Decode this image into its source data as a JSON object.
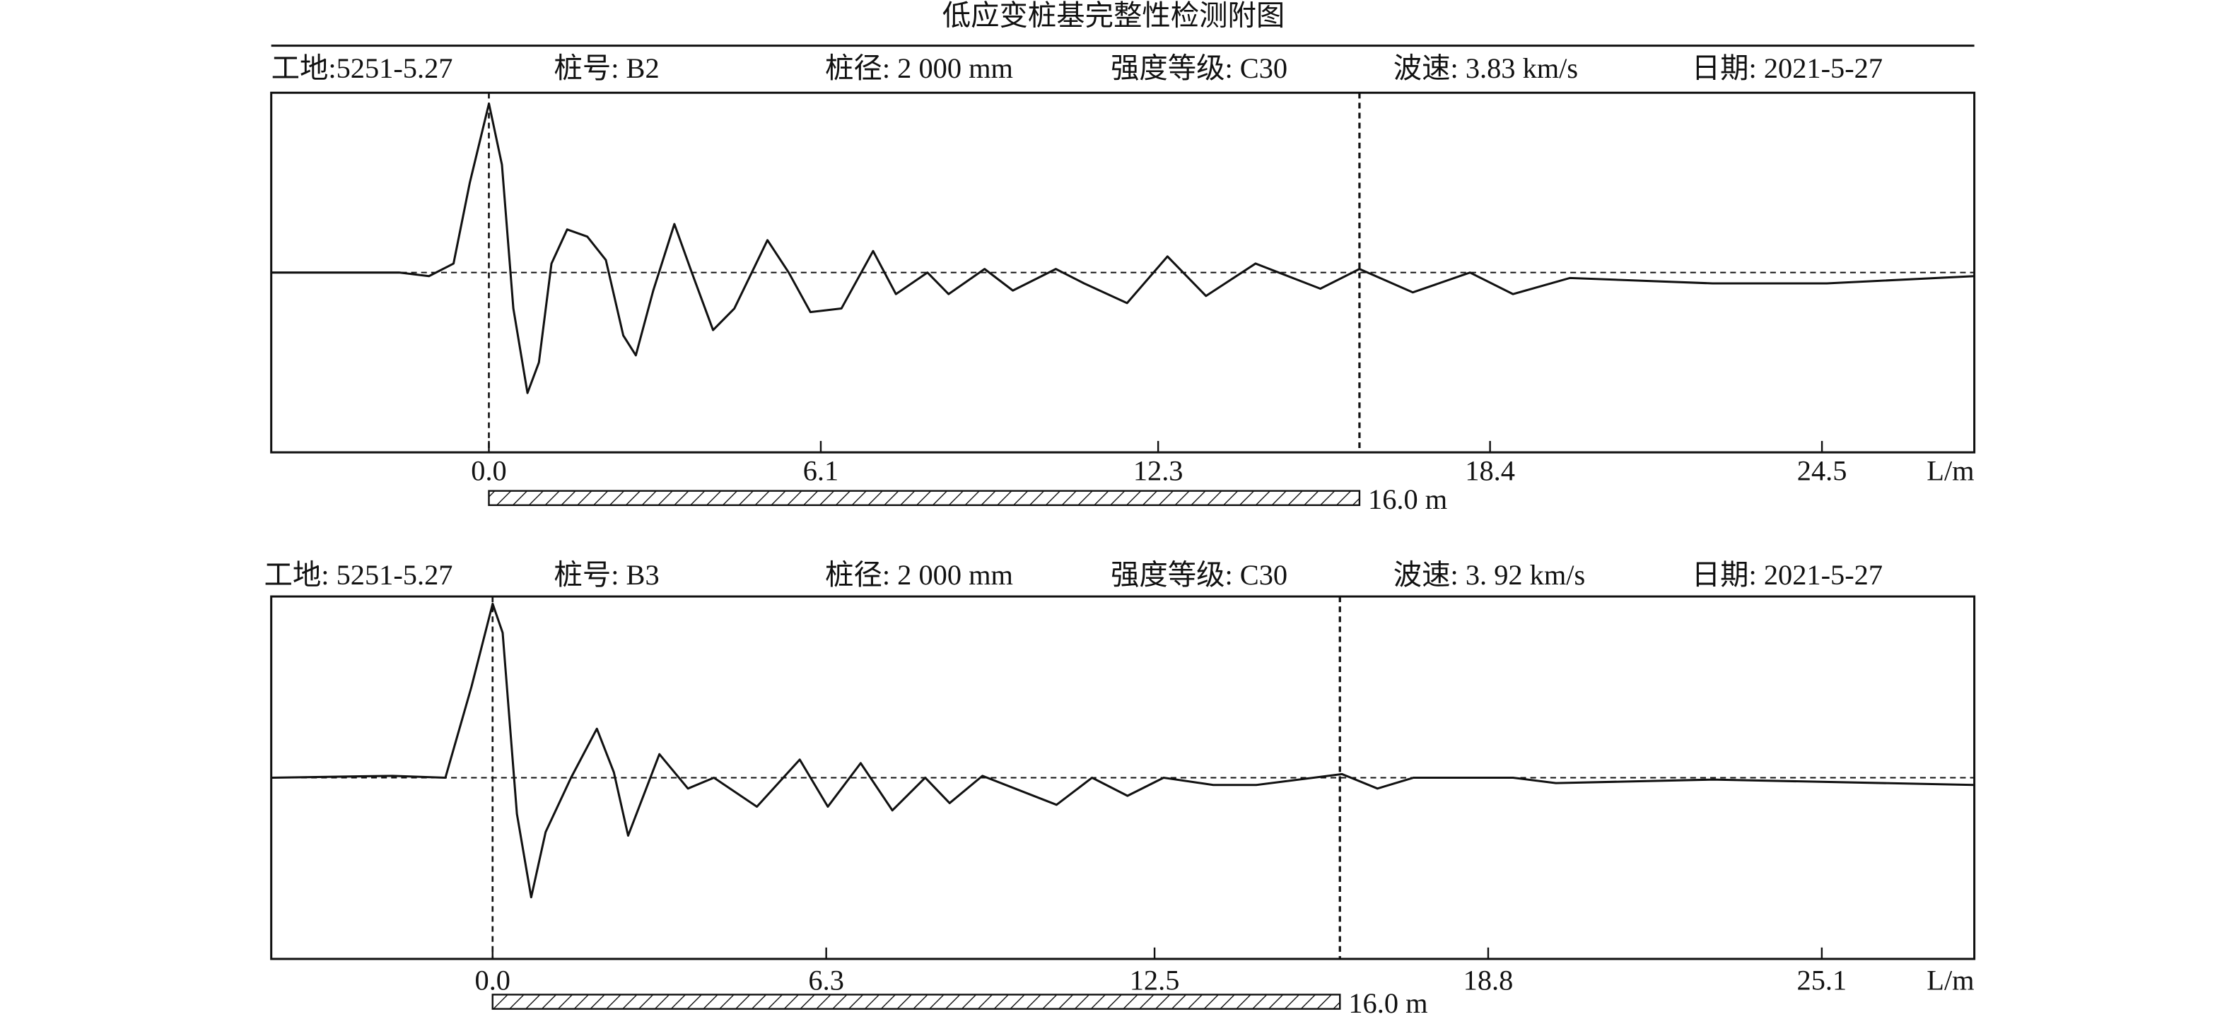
{
  "title": "低应变桩基完整性检测附图",
  "chart_data": [
    {
      "type": "line",
      "header": [
        "工地:5251-5.27",
        "桩号: B2",
        "桩径: 2 000 mm",
        "强度等级: C30",
        "波速: 3.83 km/s",
        "日期: 2021-5-27"
      ],
      "xlabel": "L/m",
      "xlim": [
        -4.0,
        27.3
      ],
      "ylim": [
        -1,
        1
      ],
      "xticks": [
        {
          "value": 0,
          "label": "0.0"
        },
        6.1,
        12.3,
        18.4,
        24.5
      ],
      "pile_length": {
        "value": 16,
        "label": "16.0 m"
      },
      "color": "#111111",
      "x": [
        -4.0,
        -1.65,
        -1.1,
        -0.65,
        -0.35,
        0,
        0.24,
        0.45,
        0.71,
        0.92,
        1.15,
        1.44,
        1.81,
        2.15,
        2.47,
        2.7,
        3.02,
        3.41,
        3.73,
        4.12,
        4.51,
        5.12,
        5.51,
        5.91,
        6.48,
        7.06,
        7.48,
        8.06,
        8.45,
        9.11,
        9.63,
        10.42,
        10.94,
        11.73,
        12.47,
        13.18,
        14.09,
        15.28,
        16.0,
        16.98,
        18.03,
        18.82,
        19.87,
        22.49,
        24.59,
        27.3
      ],
      "values": [
        0,
        0,
        -0.02,
        0.05,
        0.5,
        0.94,
        0.6,
        -0.2,
        -0.67,
        -0.5,
        0.05,
        0.24,
        0.2,
        0.07,
        -0.35,
        -0.46,
        -0.1,
        0.27,
        0,
        -0.32,
        -0.2,
        0.18,
        0,
        -0.22,
        -0.2,
        0.12,
        -0.12,
        0,
        -0.12,
        0.02,
        -0.1,
        0.02,
        -0.06,
        -0.17,
        0.09,
        -0.13,
        0.05,
        -0.09,
        0.02,
        -0.11,
        0,
        -0.12,
        -0.03,
        -0.06,
        -0.06,
        -0.02
      ]
    },
    {
      "type": "line",
      "header": [
        "工地: 5251-5.27",
        "桩号: B3",
        "桩径: 2 000 mm",
        "强度等级: C30",
        "波速: 3. 92 km/s",
        "日期: 2021-5-27"
      ],
      "xlabel": "L/m",
      "xlim": [
        -4.18,
        27.98
      ],
      "ylim": [
        -1,
        1
      ],
      "xticks": [
        {
          "value": 0,
          "label": "0.0"
        },
        6.3,
        12.5,
        18.8,
        25.1
      ],
      "pile_length": {
        "value": 16,
        "label": "16.0 m"
      },
      "color": "#111111",
      "x": [
        -4.18,
        -1.89,
        -0.89,
        -0.4,
        0,
        0.19,
        0.46,
        0.73,
        1.0,
        1.48,
        1.97,
        2.29,
        2.56,
        3.15,
        3.69,
        4.18,
        4.99,
        5.8,
        6.33,
        6.95,
        7.55,
        8.17,
        8.63,
        9.25,
        10.65,
        11.32,
        11.99,
        12.67,
        13.61,
        14.42,
        16.04,
        16.71,
        17.39,
        19.27,
        20.08,
        23.05,
        27.98
      ],
      "values": [
        0,
        0.01,
        0,
        0.5,
        0.96,
        0.8,
        -0.2,
        -0.66,
        -0.3,
        0,
        0.27,
        0.03,
        -0.32,
        0.13,
        -0.06,
        0,
        -0.16,
        0.1,
        -0.16,
        0.08,
        -0.18,
        0,
        -0.14,
        0.01,
        -0.15,
        0,
        -0.1,
        0,
        -0.04,
        -0.04,
        0.02,
        -0.06,
        0,
        0,
        -0.03,
        -0.01,
        -0.04
      ]
    }
  ]
}
